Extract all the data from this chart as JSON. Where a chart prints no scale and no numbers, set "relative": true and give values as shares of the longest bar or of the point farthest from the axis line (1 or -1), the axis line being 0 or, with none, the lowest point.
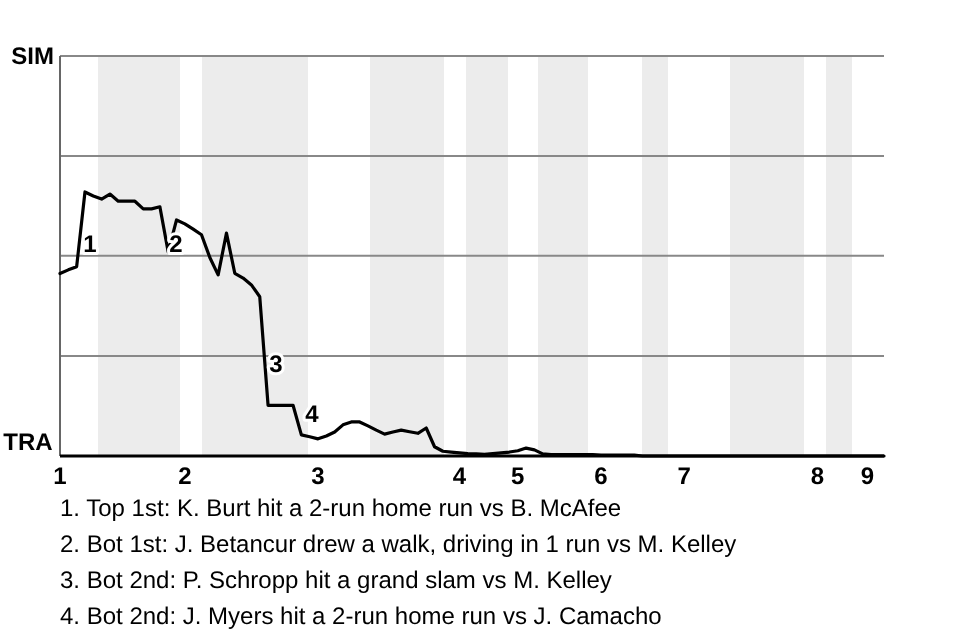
{
  "chart_data": {
    "type": "line",
    "relative": true,
    "categories": [
      "1",
      null,
      null,
      null,
      null,
      null,
      null,
      null,
      null,
      null,
      null,
      null,
      null,
      null,
      null,
      "2",
      null,
      null,
      null,
      null,
      null,
      null,
      null,
      null,
      null,
      null,
      null,
      null,
      null,
      null,
      null,
      "3",
      null,
      null,
      null,
      null,
      null,
      null,
      null,
      null,
      null,
      null,
      null,
      null,
      null,
      null,
      null,
      null,
      "4",
      null,
      null,
      null,
      null,
      null,
      null,
      "5",
      null,
      null,
      null,
      null,
      null,
      null,
      null,
      null,
      null,
      "6",
      null,
      null,
      null,
      null,
      null,
      null,
      null,
      null,
      null,
      "7",
      null,
      null,
      null,
      null,
      null,
      null,
      null,
      null,
      null,
      null,
      null,
      null,
      null,
      null,
      null,
      "8",
      null,
      null,
      null,
      null,
      null,
      "9",
      null,
      null
    ],
    "series": [
      {
        "color": "#000000",
        "values": [
          0.691,
          0.705,
          0.717,
          1,
          0.985,
          0.973,
          0.992,
          0.965,
          0.965,
          0.965,
          0.936,
          0.936,
          0.944,
          0.773,
          0.894,
          0.879,
          0.859,
          0.838,
          0.752,
          0.686,
          0.844,
          0.692,
          0.674,
          0.648,
          0.603,
          0.192,
          0.192,
          0.192,
          0.192,
          0.08,
          0.073,
          0.065,
          0.076,
          0.091,
          0.118,
          0.129,
          0.129,
          0.114,
          0.098,
          0.083,
          0.091,
          0.098,
          0.092,
          0.086,
          0.106,
          0.035,
          0.018,
          0.015,
          0.012,
          0.009,
          0.008,
          0.006,
          0.009,
          0.012,
          0.015,
          0.02,
          0.03,
          0.023,
          0.008,
          0.005,
          0.005,
          0.005,
          0.005,
          0.005,
          0.005,
          0.003,
          0.003,
          0.003,
          0.003,
          0.003,
          0,
          0,
          0,
          0,
          0,
          0,
          0,
          0,
          0,
          0,
          0,
          0,
          0,
          0,
          0,
          0,
          0,
          0,
          0,
          0,
          0,
          0,
          0,
          0,
          0,
          0,
          0,
          0,
          0,
          0
        ]
      }
    ],
    "marker": "none",
    "line_style": "solid",
    "ref_lines": [
      {
        "axis": "y",
        "value": 1.515,
        "label": "SIM",
        "color": "#888888"
      },
      {
        "axis": "y",
        "value": 1.136,
        "color": "#888888"
      },
      {
        "axis": "y",
        "value": 0.758,
        "color": "#888888"
      },
      {
        "axis": "y",
        "value": 0.379,
        "color": "#888888"
      }
    ],
    "annotations": [
      "TRA",
      "1",
      "2",
      "3",
      "4",
      "1. Top 1st: K. Burt hit a 2-run home run vs B. McAfee",
      "2. Bot 1st: J. Betancur drew a walk, driving in 1 run vs M. Kelley",
      "3. Bot 2nd: P. Schropp hit a grand slam vs M. Kelley",
      "4. Bot 2nd: J. Myers hit a 2-run home run vs J. Camacho"
    ]
  }
}
